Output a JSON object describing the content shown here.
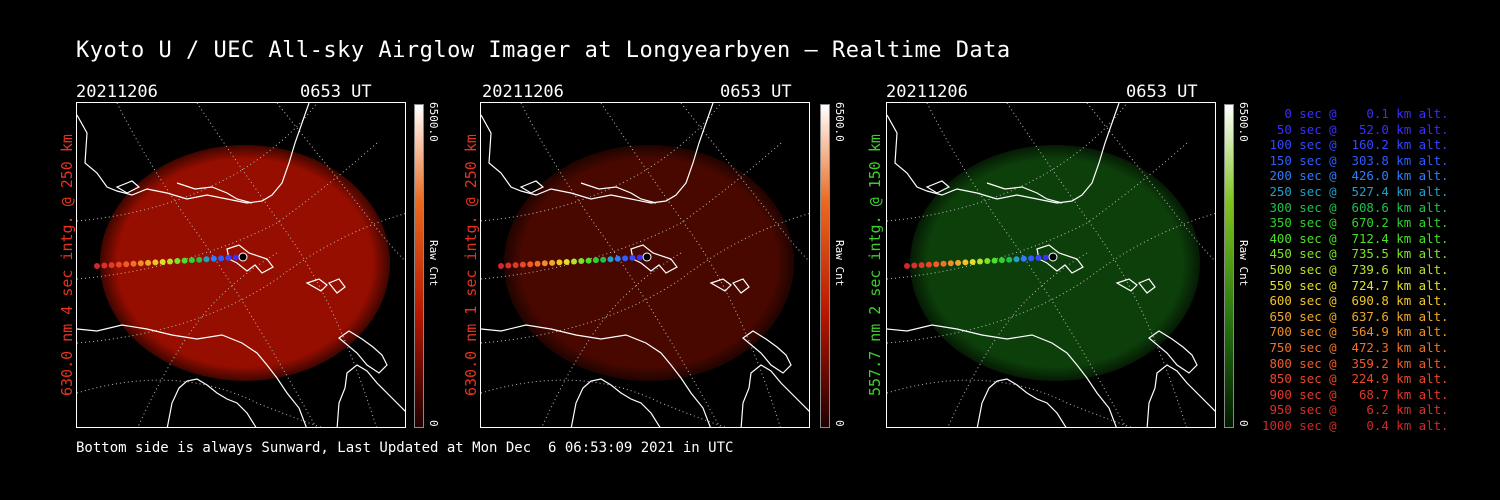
{
  "title": "Kyoto U / UEC All-sky Airglow Imager at Longyearbyen — Realtime Data",
  "footer": "Bottom side is always Sunward, Last Updated at Mon Dec  6 06:53:09 2021 in UTC",
  "panels": [
    {
      "date": "20211206",
      "time": "0653 UT",
      "ylabel": "630.0 nm 4 sec intg. @ 250 km",
      "ylabel_color": "#e8321e",
      "cbar_max": "6500.0",
      "cbar_min": "0",
      "cbar_unit": "Raw Cnt",
      "cbar_colors": [
        "#ffffff",
        "#e96a1f",
        "#b81600",
        "#200000"
      ],
      "glow_color": "#b01000",
      "glow_opacity": 0.85
    },
    {
      "date": "20211206",
      "time": "0653 UT",
      "ylabel": "630.0 nm 1 sec intg. @ 250 km",
      "ylabel_color": "#e8321e",
      "cbar_max": "6500.0",
      "cbar_min": "0",
      "cbar_unit": "Raw Cnt",
      "cbar_colors": [
        "#ffffff",
        "#e96a1f",
        "#b81600",
        "#200000"
      ],
      "glow_color": "#5a0a00",
      "glow_opacity": 0.8
    },
    {
      "date": "20211206",
      "time": "0653 UT",
      "ylabel": "557.7 nm 2 sec intg. @ 150 km",
      "ylabel_color": "#39d12a",
      "cbar_max": "6500.0",
      "cbar_min": "0",
      "cbar_unit": "Raw Cnt",
      "cbar_colors": [
        "#ffffff",
        "#7fc41e",
        "#2a7a10",
        "#001a00"
      ],
      "glow_color": "#0f4a0c",
      "glow_opacity": 0.85
    }
  ],
  "trajectory_colors": [
    "#000000",
    "#3b2fff",
    "#3a46ff",
    "#2f5cff",
    "#2e7cff",
    "#20a0c8",
    "#20c050",
    "#2fd22f",
    "#4be02a",
    "#7de32a",
    "#b8e02a",
    "#e0e02a",
    "#f0c42a",
    "#f0a82a",
    "#f08c2a",
    "#f0722a",
    "#f05a2a",
    "#e8482a",
    "#e0382a",
    "#d8302a",
    "#d0282a"
  ],
  "legend": [
    {
      "text": "   0 sec @    0.1 km alt.",
      "color": "#3a2dff"
    },
    {
      "text": "  50 sec @   52.0 km alt.",
      "color": "#3a2dff"
    },
    {
      "text": " 100 sec @  160.2 km alt.",
      "color": "#3346ff"
    },
    {
      "text": " 150 sec @  303.8 km alt.",
      "color": "#2e5cff"
    },
    {
      "text": " 200 sec @  426.0 km alt.",
      "color": "#2f7cff"
    },
    {
      "text": " 250 sec @  527.4 km alt.",
      "color": "#20a0c8"
    },
    {
      "text": " 300 sec @  608.6 km alt.",
      "color": "#20c050"
    },
    {
      "text": " 350 sec @  670.2 km alt.",
      "color": "#2fd22f"
    },
    {
      "text": " 400 sec @  712.4 km alt.",
      "color": "#4be02a"
    },
    {
      "text": " 450 sec @  735.5 km alt.",
      "color": "#7de32a"
    },
    {
      "text": " 500 sec @  739.6 km alt.",
      "color": "#b8e02a"
    },
    {
      "text": " 550 sec @  724.7 km alt.",
      "color": "#e0e02a"
    },
    {
      "text": " 600 sec @  690.8 km alt.",
      "color": "#f0c42a"
    },
    {
      "text": " 650 sec @  637.6 km alt.",
      "color": "#f0a82a"
    },
    {
      "text": " 700 sec @  564.9 km alt.",
      "color": "#f08c2a"
    },
    {
      "text": " 750 sec @  472.3 km alt.",
      "color": "#f0722a"
    },
    {
      "text": " 800 sec @  359.2 km alt.",
      "color": "#f05a2a"
    },
    {
      "text": " 850 sec @  224.9 km alt.",
      "color": "#e8482a"
    },
    {
      "text": " 900 sec @   68.7 km alt.",
      "color": "#e0382a"
    },
    {
      "text": " 950 sec @    6.2 km alt.",
      "color": "#d8302a"
    },
    {
      "text": "1000 sec @    0.4 km alt.",
      "color": "#d0282a"
    }
  ]
}
